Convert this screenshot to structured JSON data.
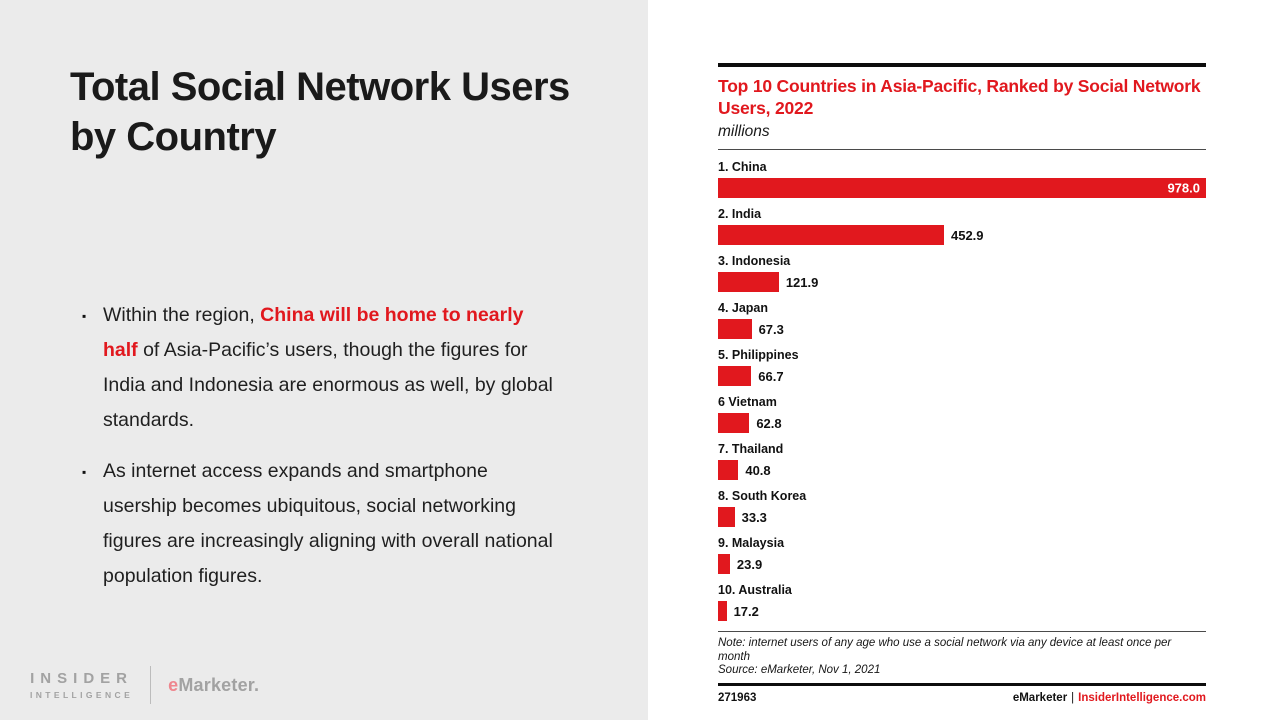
{
  "slide": {
    "title": "Total Social Network Users by Country",
    "bullet_marker": "▪",
    "bullets": [
      {
        "prefix": "Within the region, ",
        "highlight": "China will be home to nearly half",
        "suffix": " of Asia-Pacific’s users, though the figures for India and Indonesia are enormous as well, by global standards."
      },
      {
        "text": "As internet access expands and smartphone usership becomes ubiquitous, social networking figures are increasingly aligning with overall national population figures."
      }
    ]
  },
  "logo": {
    "insider": "INSIDER",
    "intelligence": "INTELLIGENCE",
    "emarketer_e": "e",
    "emarketer_rest": "Marketer."
  },
  "chart": {
    "title": "Top 10 Countries in Asia-Pacific, Ranked by Social Network Users, 2022",
    "unit": "millions",
    "note": "Note: internet users of any age who use a social network via any device at least once per month",
    "source": "Source: eMarketer, Nov 1, 2021",
    "footer_id": "271963",
    "footer_brand": "eMarketer",
    "footer_separator": "|",
    "footer_site": "InsiderIntelligence.com"
  },
  "chart_data": {
    "type": "bar",
    "orientation": "horizontal",
    "title": "Top 10 Countries in Asia-Pacific, Ranked by Social Network Users, 2022",
    "unit": "millions",
    "xlabel": "",
    "ylabel": "",
    "xlim": [
      0,
      978
    ],
    "grid": false,
    "legend": false,
    "bar_color": "#e1181e",
    "value_label_decimals": 1,
    "categories": [
      "1. China",
      "2. India",
      "3. Indonesia",
      "4. Japan",
      "5. Philippines",
      "6 Vietnam",
      "7. Thailand",
      "8. South Korea",
      "9. Malaysia",
      "10. Australia"
    ],
    "values": [
      978.0,
      452.9,
      121.9,
      67.3,
      66.7,
      62.8,
      40.8,
      33.3,
      23.9,
      17.2
    ]
  },
  "colors": {
    "accent_red": "#e1181e",
    "left_bg": "#ebebeb",
    "logo_gray": "#a2a2a2"
  }
}
